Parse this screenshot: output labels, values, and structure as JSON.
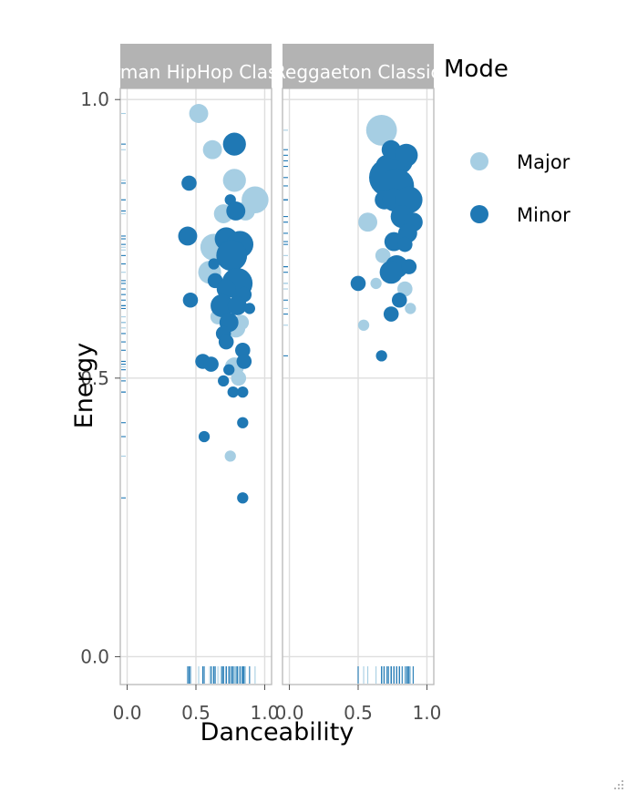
{
  "chart_data": {
    "type": "scatter",
    "xlabel": "Danceability",
    "ylabel": "Energy",
    "legend": {
      "title": "Mode",
      "position": "right",
      "entries": [
        {
          "name": "Major",
          "color": "#a6cee3"
        },
        {
          "name": "Minor",
          "color": "#1f78b4"
        }
      ]
    },
    "x_ticks": [
      "0.0",
      "0.5",
      "1.0"
    ],
    "y_ticks": [
      "0.0",
      "0.5",
      "1.0"
    ],
    "xlim": [
      -0.05,
      1.05
    ],
    "ylim": [
      -0.05,
      1.02
    ],
    "grid": true,
    "rug": true,
    "panels": [
      {
        "title": "German HipHop Classics",
        "points": [
          {
            "x": 0.52,
            "y": 0.975,
            "mode": "Major",
            "size": 3
          },
          {
            "x": 0.62,
            "y": 0.91,
            "mode": "Major",
            "size": 3
          },
          {
            "x": 0.78,
            "y": 0.92,
            "mode": "Minor",
            "size": 4
          },
          {
            "x": 0.45,
            "y": 0.85,
            "mode": "Minor",
            "size": 2
          },
          {
            "x": 0.78,
            "y": 0.855,
            "mode": "Major",
            "size": 4
          },
          {
            "x": 0.93,
            "y": 0.82,
            "mode": "Major",
            "size": 5
          },
          {
            "x": 0.86,
            "y": 0.8,
            "mode": "Major",
            "size": 3
          },
          {
            "x": 0.75,
            "y": 0.82,
            "mode": "Minor",
            "size": 1
          },
          {
            "x": 0.79,
            "y": 0.8,
            "mode": "Minor",
            "size": 3
          },
          {
            "x": 0.7,
            "y": 0.795,
            "mode": "Major",
            "size": 3
          },
          {
            "x": 0.44,
            "y": 0.755,
            "mode": "Minor",
            "size": 3
          },
          {
            "x": 0.63,
            "y": 0.735,
            "mode": "Major",
            "size": 5
          },
          {
            "x": 0.72,
            "y": 0.75,
            "mode": "Minor",
            "size": 4
          },
          {
            "x": 0.82,
            "y": 0.74,
            "mode": "Minor",
            "size": 5
          },
          {
            "x": 0.76,
            "y": 0.72,
            "mode": "Minor",
            "size": 6
          },
          {
            "x": 0.68,
            "y": 0.73,
            "mode": "Major",
            "size": 4
          },
          {
            "x": 0.63,
            "y": 0.705,
            "mode": "Minor",
            "size": 1
          },
          {
            "x": 0.6,
            "y": 0.69,
            "mode": "Major",
            "size": 4
          },
          {
            "x": 0.64,
            "y": 0.675,
            "mode": "Minor",
            "size": 2
          },
          {
            "x": 0.8,
            "y": 0.67,
            "mode": "Minor",
            "size": 6
          },
          {
            "x": 0.72,
            "y": 0.66,
            "mode": "Minor",
            "size": 3
          },
          {
            "x": 0.85,
            "y": 0.65,
            "mode": "Minor",
            "size": 2
          },
          {
            "x": 0.46,
            "y": 0.64,
            "mode": "Minor",
            "size": 2
          },
          {
            "x": 0.69,
            "y": 0.63,
            "mode": "Minor",
            "size": 4
          },
          {
            "x": 0.8,
            "y": 0.63,
            "mode": "Minor",
            "size": 3
          },
          {
            "x": 0.66,
            "y": 0.61,
            "mode": "Major",
            "size": 2
          },
          {
            "x": 0.74,
            "y": 0.6,
            "mode": "Minor",
            "size": 3
          },
          {
            "x": 0.83,
            "y": 0.6,
            "mode": "Major",
            "size": 2
          },
          {
            "x": 0.7,
            "y": 0.58,
            "mode": "Minor",
            "size": 2
          },
          {
            "x": 0.79,
            "y": 0.59,
            "mode": "Major",
            "size": 3
          },
          {
            "x": 0.72,
            "y": 0.565,
            "mode": "Minor",
            "size": 2
          },
          {
            "x": 0.89,
            "y": 0.625,
            "mode": "Minor",
            "size": 1
          },
          {
            "x": 0.84,
            "y": 0.55,
            "mode": "Minor",
            "size": 2
          },
          {
            "x": 0.55,
            "y": 0.53,
            "mode": "Minor",
            "size": 2
          },
          {
            "x": 0.61,
            "y": 0.525,
            "mode": "Minor",
            "size": 2
          },
          {
            "x": 0.78,
            "y": 0.52,
            "mode": "Major",
            "size": 3
          },
          {
            "x": 0.85,
            "y": 0.53,
            "mode": "Minor",
            "size": 2
          },
          {
            "x": 0.74,
            "y": 0.515,
            "mode": "Minor",
            "size": 1
          },
          {
            "x": 0.81,
            "y": 0.5,
            "mode": "Major",
            "size": 2
          },
          {
            "x": 0.7,
            "y": 0.495,
            "mode": "Minor",
            "size": 1
          },
          {
            "x": 0.77,
            "y": 0.475,
            "mode": "Minor",
            "size": 1
          },
          {
            "x": 0.84,
            "y": 0.475,
            "mode": "Minor",
            "size": 1
          },
          {
            "x": 0.84,
            "y": 0.42,
            "mode": "Minor",
            "size": 1
          },
          {
            "x": 0.56,
            "y": 0.395,
            "mode": "Minor",
            "size": 1
          },
          {
            "x": 0.75,
            "y": 0.36,
            "mode": "Major",
            "size": 1
          },
          {
            "x": 0.84,
            "y": 0.285,
            "mode": "Minor",
            "size": 1
          }
        ]
      },
      {
        "title": "Reggaeton Classics",
        "points": [
          {
            "x": 0.67,
            "y": 0.945,
            "mode": "Major",
            "size": 6
          },
          {
            "x": 0.74,
            "y": 0.91,
            "mode": "Minor",
            "size": 3
          },
          {
            "x": 0.71,
            "y": 0.88,
            "mode": "Minor",
            "size": 4
          },
          {
            "x": 0.8,
            "y": 0.89,
            "mode": "Minor",
            "size": 5
          },
          {
            "x": 0.85,
            "y": 0.9,
            "mode": "Minor",
            "size": 4
          },
          {
            "x": 0.72,
            "y": 0.86,
            "mode": "Minor",
            "size": 8
          },
          {
            "x": 0.78,
            "y": 0.845,
            "mode": "Minor",
            "size": 7
          },
          {
            "x": 0.69,
            "y": 0.82,
            "mode": "Minor",
            "size": 3
          },
          {
            "x": 0.76,
            "y": 0.82,
            "mode": "Minor",
            "size": 4
          },
          {
            "x": 0.87,
            "y": 0.82,
            "mode": "Minor",
            "size": 5
          },
          {
            "x": 0.57,
            "y": 0.78,
            "mode": "Major",
            "size": 3
          },
          {
            "x": 0.82,
            "y": 0.79,
            "mode": "Minor",
            "size": 4
          },
          {
            "x": 0.9,
            "y": 0.78,
            "mode": "Minor",
            "size": 3
          },
          {
            "x": 0.86,
            "y": 0.76,
            "mode": "Minor",
            "size": 3
          },
          {
            "x": 0.76,
            "y": 0.745,
            "mode": "Minor",
            "size": 3
          },
          {
            "x": 0.84,
            "y": 0.74,
            "mode": "Minor",
            "size": 2
          },
          {
            "x": 0.68,
            "y": 0.72,
            "mode": "Major",
            "size": 2
          },
          {
            "x": 0.78,
            "y": 0.7,
            "mode": "Minor",
            "size": 4
          },
          {
            "x": 0.87,
            "y": 0.7,
            "mode": "Minor",
            "size": 2
          },
          {
            "x": 0.74,
            "y": 0.69,
            "mode": "Minor",
            "size": 4
          },
          {
            "x": 0.5,
            "y": 0.67,
            "mode": "Minor",
            "size": 2
          },
          {
            "x": 0.63,
            "y": 0.67,
            "mode": "Major",
            "size": 1
          },
          {
            "x": 0.84,
            "y": 0.66,
            "mode": "Major",
            "size": 2
          },
          {
            "x": 0.8,
            "y": 0.64,
            "mode": "Minor",
            "size": 2
          },
          {
            "x": 0.88,
            "y": 0.625,
            "mode": "Major",
            "size": 1
          },
          {
            "x": 0.74,
            "y": 0.615,
            "mode": "Minor",
            "size": 2
          },
          {
            "x": 0.54,
            "y": 0.595,
            "mode": "Major",
            "size": 1
          },
          {
            "x": 0.67,
            "y": 0.54,
            "mode": "Minor",
            "size": 1
          }
        ]
      }
    ]
  }
}
